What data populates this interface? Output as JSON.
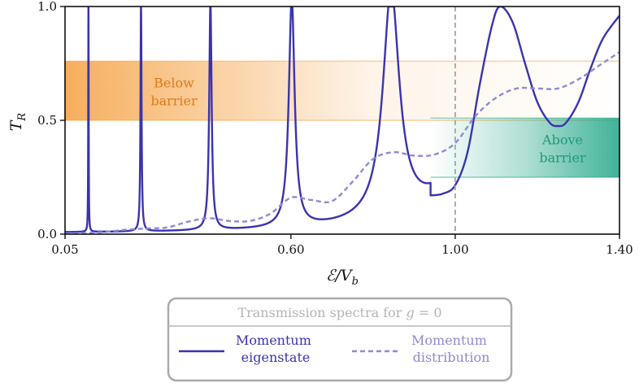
{
  "chart_data": {
    "type": "line",
    "xlabel": "E/V_b",
    "xlabel_main": "ℰ/V",
    "xlabel_sub": "b",
    "ylabel": "T_R",
    "ylabel_main": "T",
    "ylabel_sub": "R",
    "xlim": [
      0.05,
      1.4
    ],
    "ylim": [
      0.0,
      1.0
    ],
    "xticks": [
      0.05,
      0.6,
      1.0,
      1.4
    ],
    "xtick_labels": [
      "0.05",
      "0.60",
      "1.00",
      "1.40"
    ],
    "yticks": [
      0.0,
      0.5,
      1.0
    ],
    "ytick_labels": [
      "0.0",
      "0.5",
      "1.0"
    ],
    "grid": false,
    "vline": {
      "x": 1.0,
      "color": "#aaaaaa",
      "style": "dashed"
    },
    "bands": [
      {
        "label_lines": [
          "Below",
          "barrier"
        ],
        "x": [
          0.05,
          1.4
        ],
        "y": [
          0.5,
          0.76
        ],
        "color": "#f5a040",
        "text_color": "#e07a1a",
        "fade": "right"
      },
      {
        "label_lines": [
          "Above",
          "barrier"
        ],
        "x": [
          0.94,
          1.4
        ],
        "y": [
          0.25,
          0.51
        ],
        "color": "#1ea585",
        "text_color": "#1e9a7a",
        "fade": "left"
      }
    ],
    "series": [
      {
        "name": "Momentum eigenstate",
        "legend_lines": [
          "Momentum",
          "eigenstate"
        ],
        "color": "#3a33b0",
        "style": "solid",
        "background": 0.003,
        "resonances": [
          {
            "x": 0.107,
            "width": 0.0006
          },
          {
            "x": 0.235,
            "width": 0.0015
          },
          {
            "x": 0.404,
            "width": 0.0035
          },
          {
            "x": 0.602,
            "width": 0.0085
          },
          {
            "x": 0.844,
            "width": 0.024
          },
          {
            "x": 1.11,
            "width": 0.075
          }
        ],
        "x": [
          0.94,
          0.97,
          1.0,
          1.03,
          1.06,
          1.09,
          1.11,
          1.14,
          1.17,
          1.2,
          1.23,
          1.25,
          1.27,
          1.3,
          1.33,
          1.36,
          1.4
        ],
        "y": [
          0.17,
          0.178,
          0.215,
          0.36,
          0.66,
          0.92,
          1.0,
          0.93,
          0.75,
          0.58,
          0.49,
          0.475,
          0.49,
          0.58,
          0.73,
          0.86,
          0.96
        ]
      },
      {
        "name": "Momentum distribution",
        "legend_lines": [
          "Momentum",
          "distribution"
        ],
        "color": "#8f8ad6",
        "style": "dashed",
        "x": [
          0.05,
          0.1,
          0.15,
          0.2,
          0.25,
          0.3,
          0.35,
          0.4,
          0.45,
          0.5,
          0.55,
          0.6,
          0.65,
          0.7,
          0.75,
          0.8,
          0.85,
          0.9,
          0.95,
          1.0,
          1.05,
          1.1,
          1.15,
          1.2,
          1.25,
          1.3,
          1.35,
          1.4
        ],
        "y": [
          0.003,
          0.005,
          0.01,
          0.02,
          0.025,
          0.03,
          0.055,
          0.07,
          0.058,
          0.058,
          0.09,
          0.16,
          0.15,
          0.145,
          0.23,
          0.33,
          0.36,
          0.345,
          0.35,
          0.4,
          0.52,
          0.6,
          0.64,
          0.64,
          0.64,
          0.68,
          0.74,
          0.8
        ]
      }
    ],
    "legend": {
      "title": "Transmission spectra for g = 0",
      "title_prefix": "Transmission spectra for",
      "title_var": "g",
      "title_suffix": "= 0",
      "placement": "bottom-center"
    }
  }
}
